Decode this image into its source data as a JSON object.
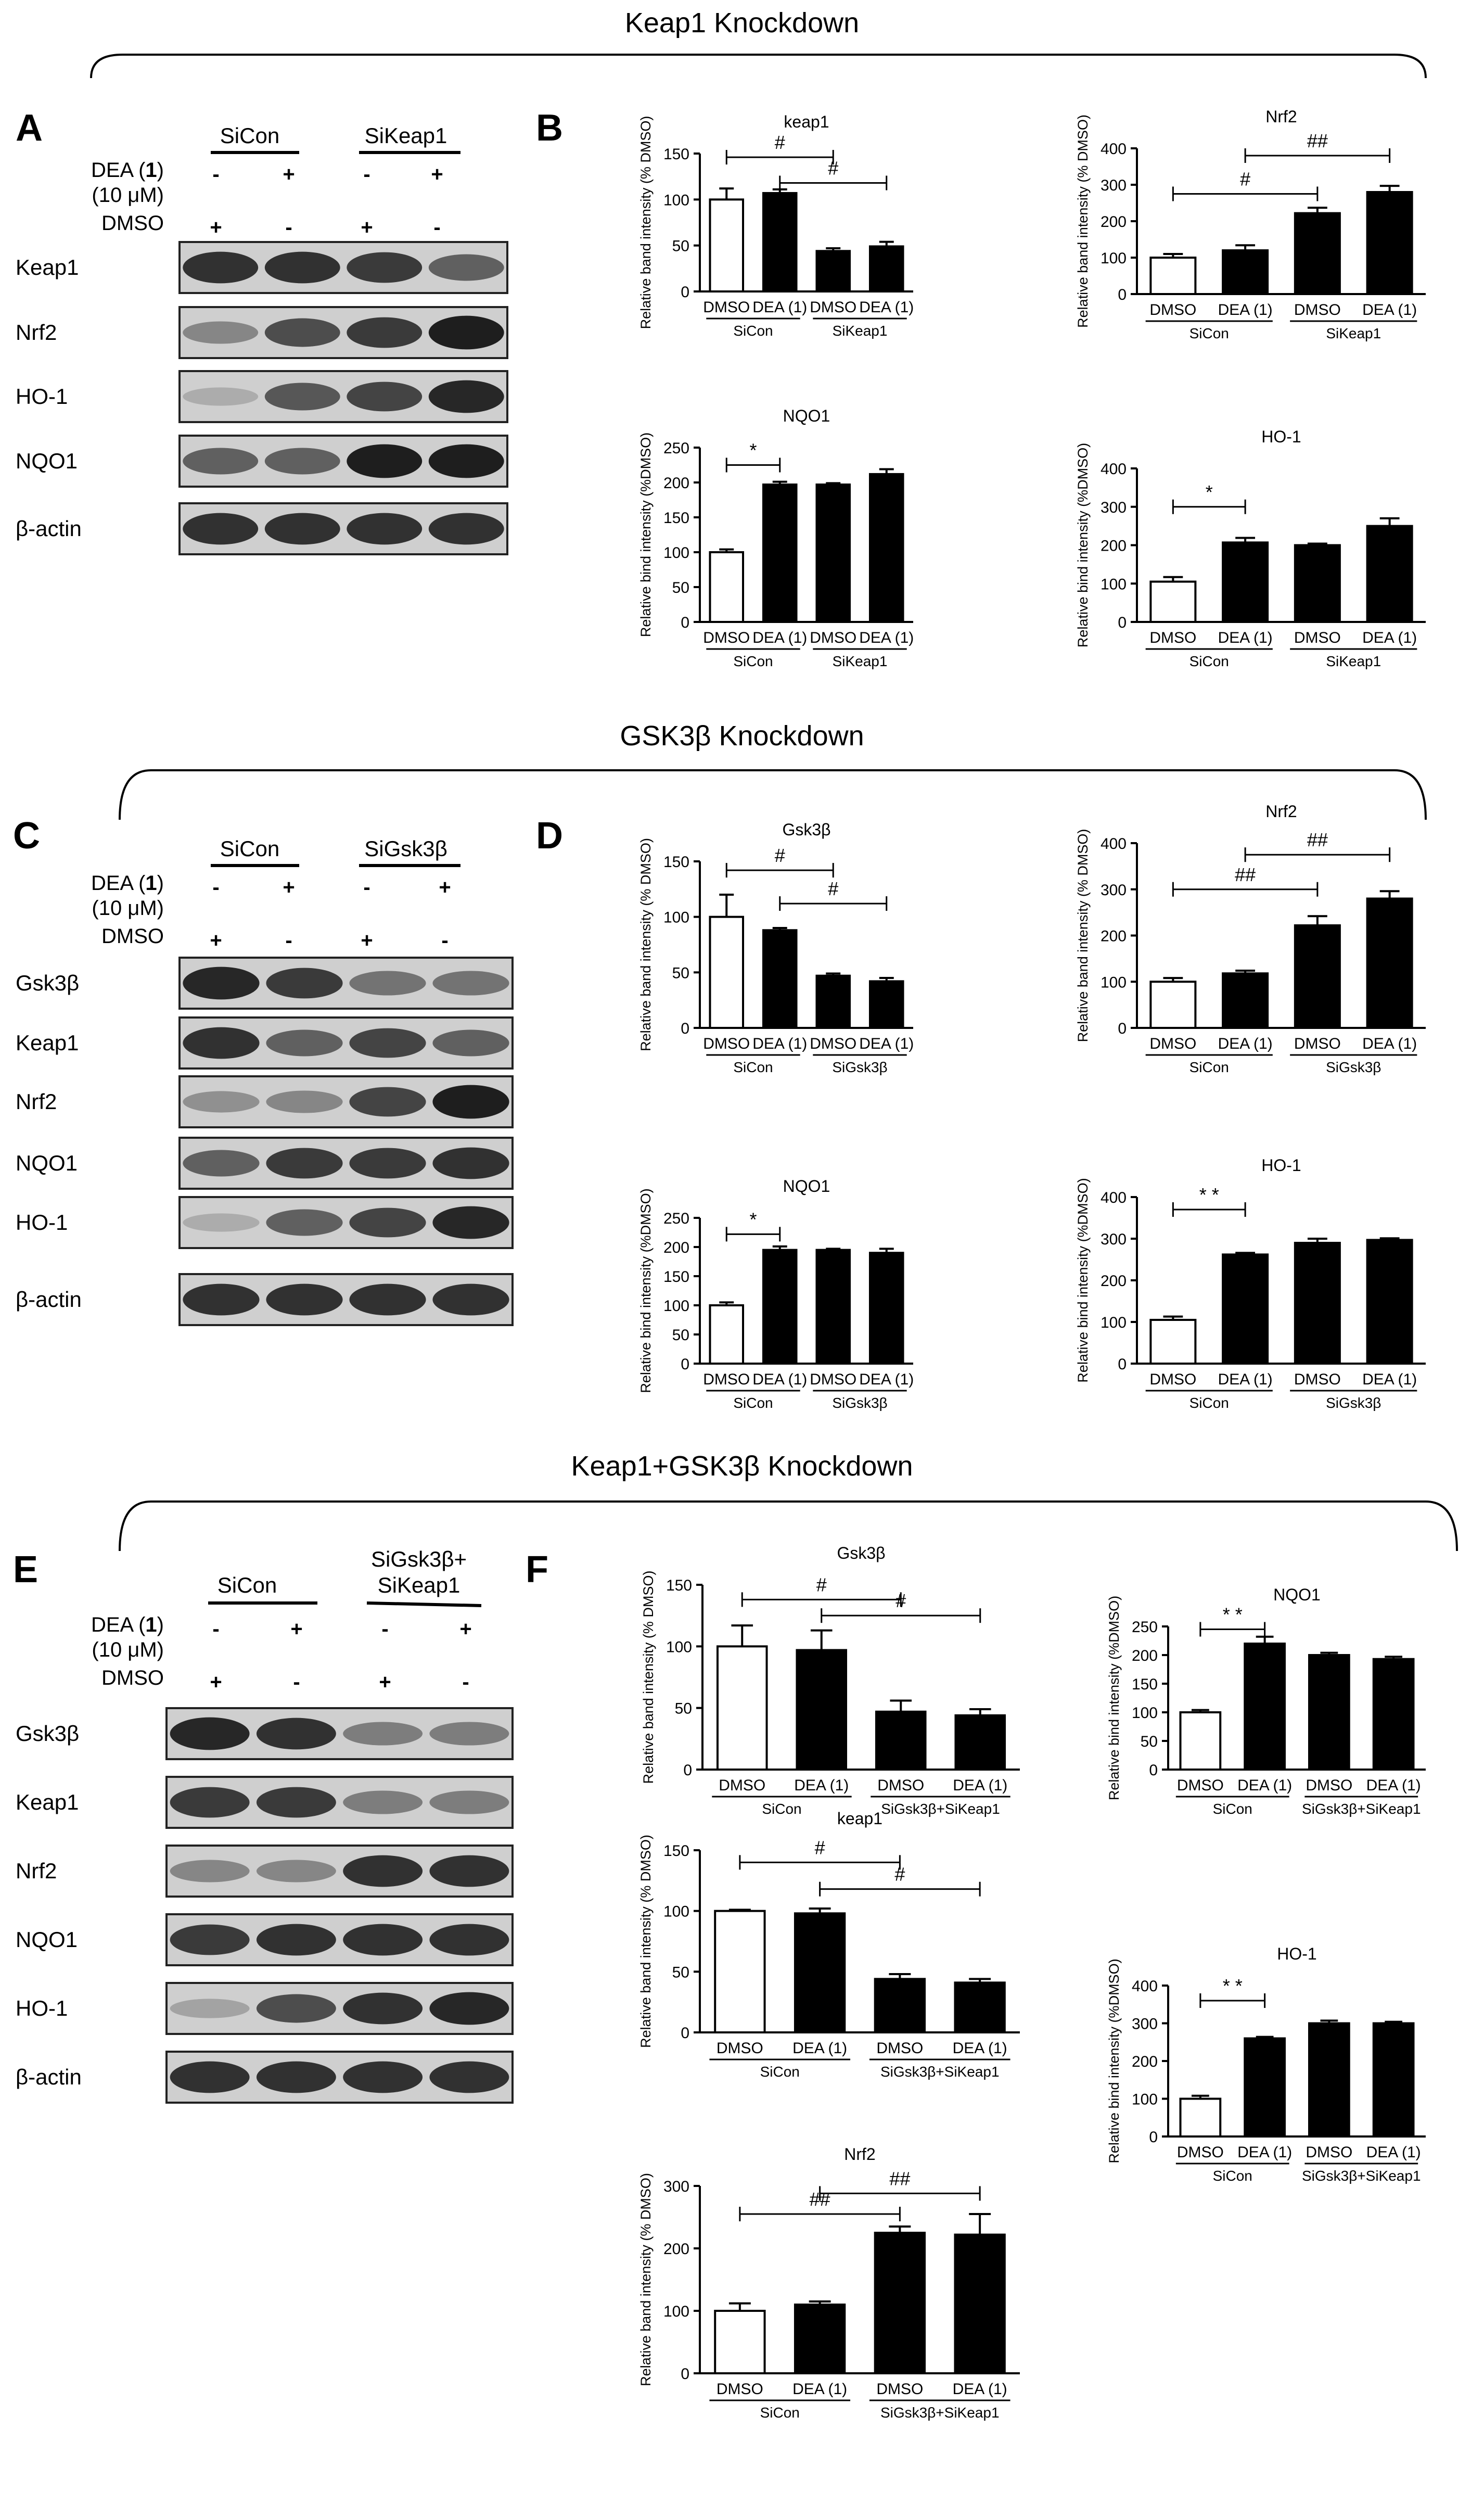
{
  "sections": [
    {
      "title": "Keap1 Knockdown"
    },
    {
      "title": "GSK3β Knockdown"
    },
    {
      "title": "Keap1+GSK3β Knockdown"
    }
  ],
  "panel_letters": [
    "A",
    "B",
    "C",
    "D",
    "E",
    "F"
  ],
  "blots": [
    {
      "letter": "A",
      "group_labels": [
        "SiCon",
        "SiKeap1"
      ],
      "treatment_label_1": "DEA (",
      "treatment_label_bold": "1",
      "treatment_label_2": ")",
      "concentration_label": "(10 μM)",
      "dmso_label": "DMSO",
      "dea_row": [
        "-",
        "+",
        "-",
        "+"
      ],
      "dmso_row": [
        "+",
        "-",
        "+",
        "-"
      ],
      "bands": [
        {
          "label": "Keap1",
          "intensity": [
            0.85,
            0.85,
            0.8,
            0.6
          ]
        },
        {
          "label": "Nrf2",
          "intensity": [
            0.4,
            0.7,
            0.8,
            0.95
          ]
        },
        {
          "label": "HO-1",
          "intensity": [
            0.2,
            0.65,
            0.75,
            0.9
          ]
        },
        {
          "label": "NQO1",
          "intensity": [
            0.6,
            0.6,
            0.95,
            0.95
          ]
        },
        {
          "label": "β-actin",
          "intensity": [
            0.85,
            0.85,
            0.85,
            0.85
          ]
        }
      ]
    },
    {
      "letter": "C",
      "group_labels": [
        "SiCon",
        "SiGsk3β"
      ],
      "treatment_label_1": "DEA (",
      "treatment_label_bold": "1",
      "treatment_label_2": ")",
      "concentration_label": "(10 μM)",
      "dmso_label": "DMSO",
      "dea_row": [
        "-",
        "+",
        "-",
        "+"
      ],
      "dmso_row": [
        "+",
        "-",
        "+",
        "-"
      ],
      "bands": [
        {
          "label": "Gsk3β",
          "intensity": [
            0.9,
            0.8,
            0.5,
            0.5
          ]
        },
        {
          "label": "Keap1",
          "intensity": [
            0.85,
            0.6,
            0.75,
            0.6
          ]
        },
        {
          "label": "Nrf2",
          "intensity": [
            0.35,
            0.4,
            0.75,
            0.95
          ]
        },
        {
          "label": "NQO1",
          "intensity": [
            0.6,
            0.8,
            0.8,
            0.85
          ]
        },
        {
          "label": "HO-1",
          "intensity": [
            0.2,
            0.6,
            0.75,
            0.9
          ]
        },
        {
          "label": "β-actin",
          "intensity": [
            0.85,
            0.85,
            0.85,
            0.85
          ]
        }
      ]
    },
    {
      "letter": "E",
      "group_labels": [
        "SiCon",
        "SiGsk3β+",
        "SiKeap1"
      ],
      "treatment_label_1": "DEA (",
      "treatment_label_bold": "1",
      "treatment_label_2": ")",
      "concentration_label": "(10 μM)",
      "dmso_label": "DMSO",
      "dea_row": [
        "-",
        "+",
        "-",
        "+"
      ],
      "dmso_row": [
        "+",
        "-",
        "+",
        "-"
      ],
      "bands": [
        {
          "label": "Gsk3β",
          "intensity": [
            0.9,
            0.85,
            0.45,
            0.45
          ]
        },
        {
          "label": "Keap1",
          "intensity": [
            0.8,
            0.8,
            0.45,
            0.45
          ]
        },
        {
          "label": "Nrf2",
          "intensity": [
            0.4,
            0.4,
            0.85,
            0.85
          ]
        },
        {
          "label": "NQO1",
          "intensity": [
            0.8,
            0.85,
            0.85,
            0.85
          ]
        },
        {
          "label": "HO-1",
          "intensity": [
            0.25,
            0.7,
            0.85,
            0.9
          ]
        },
        {
          "label": "β-actin",
          "intensity": [
            0.85,
            0.85,
            0.85,
            0.85
          ]
        }
      ]
    }
  ],
  "chart_data": [
    {
      "panel": "B",
      "type": "bar",
      "title": "keap1",
      "ylabel": "Relative band intensity (% DMSO)",
      "ylim": [
        0,
        150
      ],
      "yticks": [
        0,
        50,
        100,
        150
      ],
      "categories": [
        "DMSO",
        "DEA (1)",
        "DMSO",
        "DEA (1)"
      ],
      "values": [
        100,
        107,
        44,
        49
      ],
      "errors": [
        12,
        4,
        3,
        5
      ],
      "fill": [
        "white",
        "black",
        "black",
        "black"
      ],
      "groups": [
        "SiCon",
        "SiKeap1"
      ],
      "annotations": [
        {
          "from": 0,
          "to": 2,
          "level": 146,
          "text": "#"
        },
        {
          "from": 1,
          "to": 3,
          "level": 118,
          "text": "#"
        }
      ]
    },
    {
      "panel": "B",
      "type": "bar",
      "title": "Nrf2",
      "ylabel": "Relative band intensity (% DMSO)",
      "ylim": [
        0,
        400
      ],
      "yticks": [
        0,
        100,
        200,
        300,
        400
      ],
      "categories": [
        "DMSO",
        "DEA (1)",
        "DMSO",
        "DEA (1)"
      ],
      "values": [
        100,
        120,
        222,
        280
      ],
      "errors": [
        10,
        14,
        15,
        17
      ],
      "fill": [
        "white",
        "black",
        "black",
        "black"
      ],
      "groups": [
        "SiCon",
        "SiKeap1"
      ],
      "annotations": [
        {
          "from": 0,
          "to": 2,
          "level": 275,
          "text": "#"
        },
        {
          "from": 1,
          "to": 3,
          "level": 380,
          "text": "##"
        }
      ]
    },
    {
      "panel": "B",
      "type": "bar",
      "title": "NQO1",
      "ylabel": "Relative bind intensity (%DMSO)",
      "ylim": [
        0,
        250
      ],
      "yticks": [
        0,
        50,
        100,
        150,
        200,
        250
      ],
      "categories": [
        "DMSO",
        "DEA (1)",
        "DMSO",
        "DEA (1)"
      ],
      "values": [
        100,
        197,
        197,
        212
      ],
      "errors": [
        4,
        4,
        2,
        7
      ],
      "fill": [
        "white",
        "black",
        "black",
        "black"
      ],
      "groups": [
        "SiCon",
        "SiKeap1"
      ],
      "annotations": [
        {
          "from": 0,
          "to": 1,
          "level": 225,
          "text": "*"
        }
      ]
    },
    {
      "panel": "B",
      "type": "bar",
      "title": "HO-1",
      "ylabel": "Relative bind intensity (%DMSO)",
      "ylim": [
        0,
        400
      ],
      "yticks": [
        0,
        100,
        200,
        300,
        400
      ],
      "categories": [
        "DMSO",
        "DEA (1)",
        "DMSO",
        "DEA (1)"
      ],
      "values": [
        105,
        207,
        200,
        250
      ],
      "errors": [
        12,
        12,
        4,
        20
      ],
      "fill": [
        "white",
        "black",
        "black",
        "black"
      ],
      "groups": [
        "SiCon",
        "SiKeap1"
      ],
      "annotations": [
        {
          "from": 0,
          "to": 1,
          "level": 300,
          "text": "*"
        }
      ]
    },
    {
      "panel": "D",
      "type": "bar",
      "title": "Gsk3β",
      "ylabel": "Relative band intensity (% DMSO)",
      "ylim": [
        0,
        150
      ],
      "yticks": [
        0,
        50,
        100,
        150
      ],
      "categories": [
        "DMSO",
        "DEA (1)",
        "DMSO",
        "DEA (1)"
      ],
      "values": [
        100,
        88,
        47,
        42
      ],
      "errors": [
        20,
        2,
        2,
        3
      ],
      "fill": [
        "white",
        "black",
        "black",
        "black"
      ],
      "groups": [
        "SiCon",
        "SiGsk3β"
      ],
      "annotations": [
        {
          "from": 0,
          "to": 2,
          "level": 142,
          "text": "#"
        },
        {
          "from": 1,
          "to": 3,
          "level": 112,
          "text": "#"
        }
      ]
    },
    {
      "panel": "D",
      "type": "bar",
      "title": "Nrf2",
      "ylabel": "Relative band intensity (% DMSO)",
      "ylim": [
        0,
        400
      ],
      "yticks": [
        0,
        100,
        200,
        300,
        400
      ],
      "categories": [
        "DMSO",
        "DEA (1)",
        "DMSO",
        "DEA (1)"
      ],
      "values": [
        100,
        118,
        222,
        280
      ],
      "errors": [
        8,
        6,
        20,
        16
      ],
      "fill": [
        "white",
        "black",
        "black",
        "black"
      ],
      "groups": [
        "SiCon",
        "SiGsk3β"
      ],
      "annotations": [
        {
          "from": 0,
          "to": 2,
          "level": 300,
          "text": "##"
        },
        {
          "from": 1,
          "to": 3,
          "level": 375,
          "text": "##"
        }
      ]
    },
    {
      "panel": "D",
      "type": "bar",
      "title": "NQO1",
      "ylabel": "Relative bind intensity (%DMSO)",
      "ylim": [
        0,
        250
      ],
      "yticks": [
        0,
        50,
        100,
        150,
        200,
        250
      ],
      "categories": [
        "DMSO",
        "DEA (1)",
        "DMSO",
        "DEA (1)"
      ],
      "values": [
        100,
        195,
        195,
        190
      ],
      "errors": [
        5,
        6,
        2,
        7
      ],
      "fill": [
        "white",
        "black",
        "black",
        "black"
      ],
      "groups": [
        "SiCon",
        "SiGsk3β"
      ],
      "annotations": [
        {
          "from": 0,
          "to": 1,
          "level": 222,
          "text": "*"
        }
      ]
    },
    {
      "panel": "D",
      "type": "bar",
      "title": "HO-1",
      "ylabel": "Relative bind intensity (%DMSO)",
      "ylim": [
        0,
        400
      ],
      "yticks": [
        0,
        100,
        200,
        300,
        400
      ],
      "categories": [
        "DMSO",
        "DEA (1)",
        "DMSO",
        "DEA (1)"
      ],
      "values": [
        105,
        262,
        290,
        297
      ],
      "errors": [
        8,
        4,
        10,
        4
      ],
      "fill": [
        "white",
        "black",
        "black",
        "black"
      ],
      "groups": [
        "SiCon",
        "SiGsk3β"
      ],
      "annotations": [
        {
          "from": 0,
          "to": 1,
          "level": 370,
          "text": "* *"
        }
      ]
    },
    {
      "panel": "F",
      "type": "bar",
      "title": "Gsk3β",
      "ylabel": "Relative band intensity (% DMSO)",
      "ylim": [
        0,
        150
      ],
      "yticks": [
        0,
        50,
        100,
        150
      ],
      "categories": [
        "DMSO",
        "DEA (1)",
        "DMSO",
        "DEA (1)"
      ],
      "values": [
        100,
        97,
        47,
        44
      ],
      "errors": [
        17,
        16,
        9,
        5
      ],
      "fill": [
        "white",
        "black",
        "black",
        "black"
      ],
      "groups": [
        "SiCon",
        "SiGsk3β+SiKeap1"
      ],
      "annotations": [
        {
          "from": 0,
          "to": 2,
          "level": 138,
          "text": "#"
        },
        {
          "from": 1,
          "to": 3,
          "level": 125,
          "text": "#"
        }
      ]
    },
    {
      "panel": "F",
      "type": "bar",
      "title": "NQO1",
      "ylabel": "Relative bind intensity (%DMSO)",
      "ylim": [
        0,
        250
      ],
      "yticks": [
        0,
        50,
        100,
        150,
        200,
        250
      ],
      "categories": [
        "DMSO",
        "DEA (1)",
        "DMSO",
        "DEA (1)"
      ],
      "values": [
        100,
        220,
        200,
        193
      ],
      "errors": [
        4,
        12,
        4,
        4
      ],
      "fill": [
        "white",
        "black",
        "black",
        "black"
      ],
      "groups": [
        "SiCon",
        "SiGsk3β+SiKeap1"
      ],
      "annotations": [
        {
          "from": 0,
          "to": 1,
          "level": 245,
          "text": "* *"
        }
      ]
    },
    {
      "panel": "F",
      "type": "bar",
      "title": "keap1",
      "ylabel": "Relative band intensity (% DMSO)",
      "ylim": [
        0,
        150
      ],
      "yticks": [
        0,
        50,
        100,
        150
      ],
      "categories": [
        "DMSO",
        "DEA (1)",
        "DMSO",
        "DEA (1)"
      ],
      "values": [
        100,
        98,
        44,
        41
      ],
      "errors": [
        1,
        4,
        4,
        3
      ],
      "fill": [
        "white",
        "black",
        "black",
        "black"
      ],
      "groups": [
        "SiCon",
        "SiGsk3β+SiKeap1"
      ],
      "annotations": [
        {
          "from": 0,
          "to": 2,
          "level": 140,
          "text": "#"
        },
        {
          "from": 1,
          "to": 3,
          "level": 118,
          "text": "#"
        }
      ]
    },
    {
      "panel": "F",
      "type": "bar",
      "title": "HO-1",
      "ylabel": "Relative bind intensity (%DMSO)",
      "ylim": [
        0,
        400
      ],
      "yticks": [
        0,
        100,
        200,
        300,
        400
      ],
      "categories": [
        "DMSO",
        "DEA (1)",
        "DMSO",
        "DEA (1)"
      ],
      "values": [
        100,
        260,
        300,
        300
      ],
      "errors": [
        8,
        4,
        7,
        4
      ],
      "fill": [
        "white",
        "black",
        "black",
        "black"
      ],
      "groups": [
        "SiCon",
        "SiGsk3β+SiKeap1"
      ],
      "annotations": [
        {
          "from": 0,
          "to": 1,
          "level": 360,
          "text": "* *"
        }
      ]
    },
    {
      "panel": "F",
      "type": "bar",
      "title": "Nrf2",
      "ylabel": "Relative band intensity (% DMSO)",
      "ylim": [
        0,
        300
      ],
      "yticks": [
        0,
        100,
        200,
        300
      ],
      "categories": [
        "DMSO",
        "DEA (1)",
        "DMSO",
        "DEA (1)"
      ],
      "values": [
        100,
        110,
        225,
        222
      ],
      "errors": [
        12,
        5,
        10,
        33
      ],
      "fill": [
        "white",
        "black",
        "black",
        "black"
      ],
      "groups": [
        "SiCon",
        "SiGsk3β+SiKeap1"
      ],
      "annotations": [
        {
          "from": 0,
          "to": 2,
          "level": 255,
          "text": "##"
        },
        {
          "from": 1,
          "to": 3,
          "level": 288,
          "text": "##"
        }
      ]
    }
  ]
}
